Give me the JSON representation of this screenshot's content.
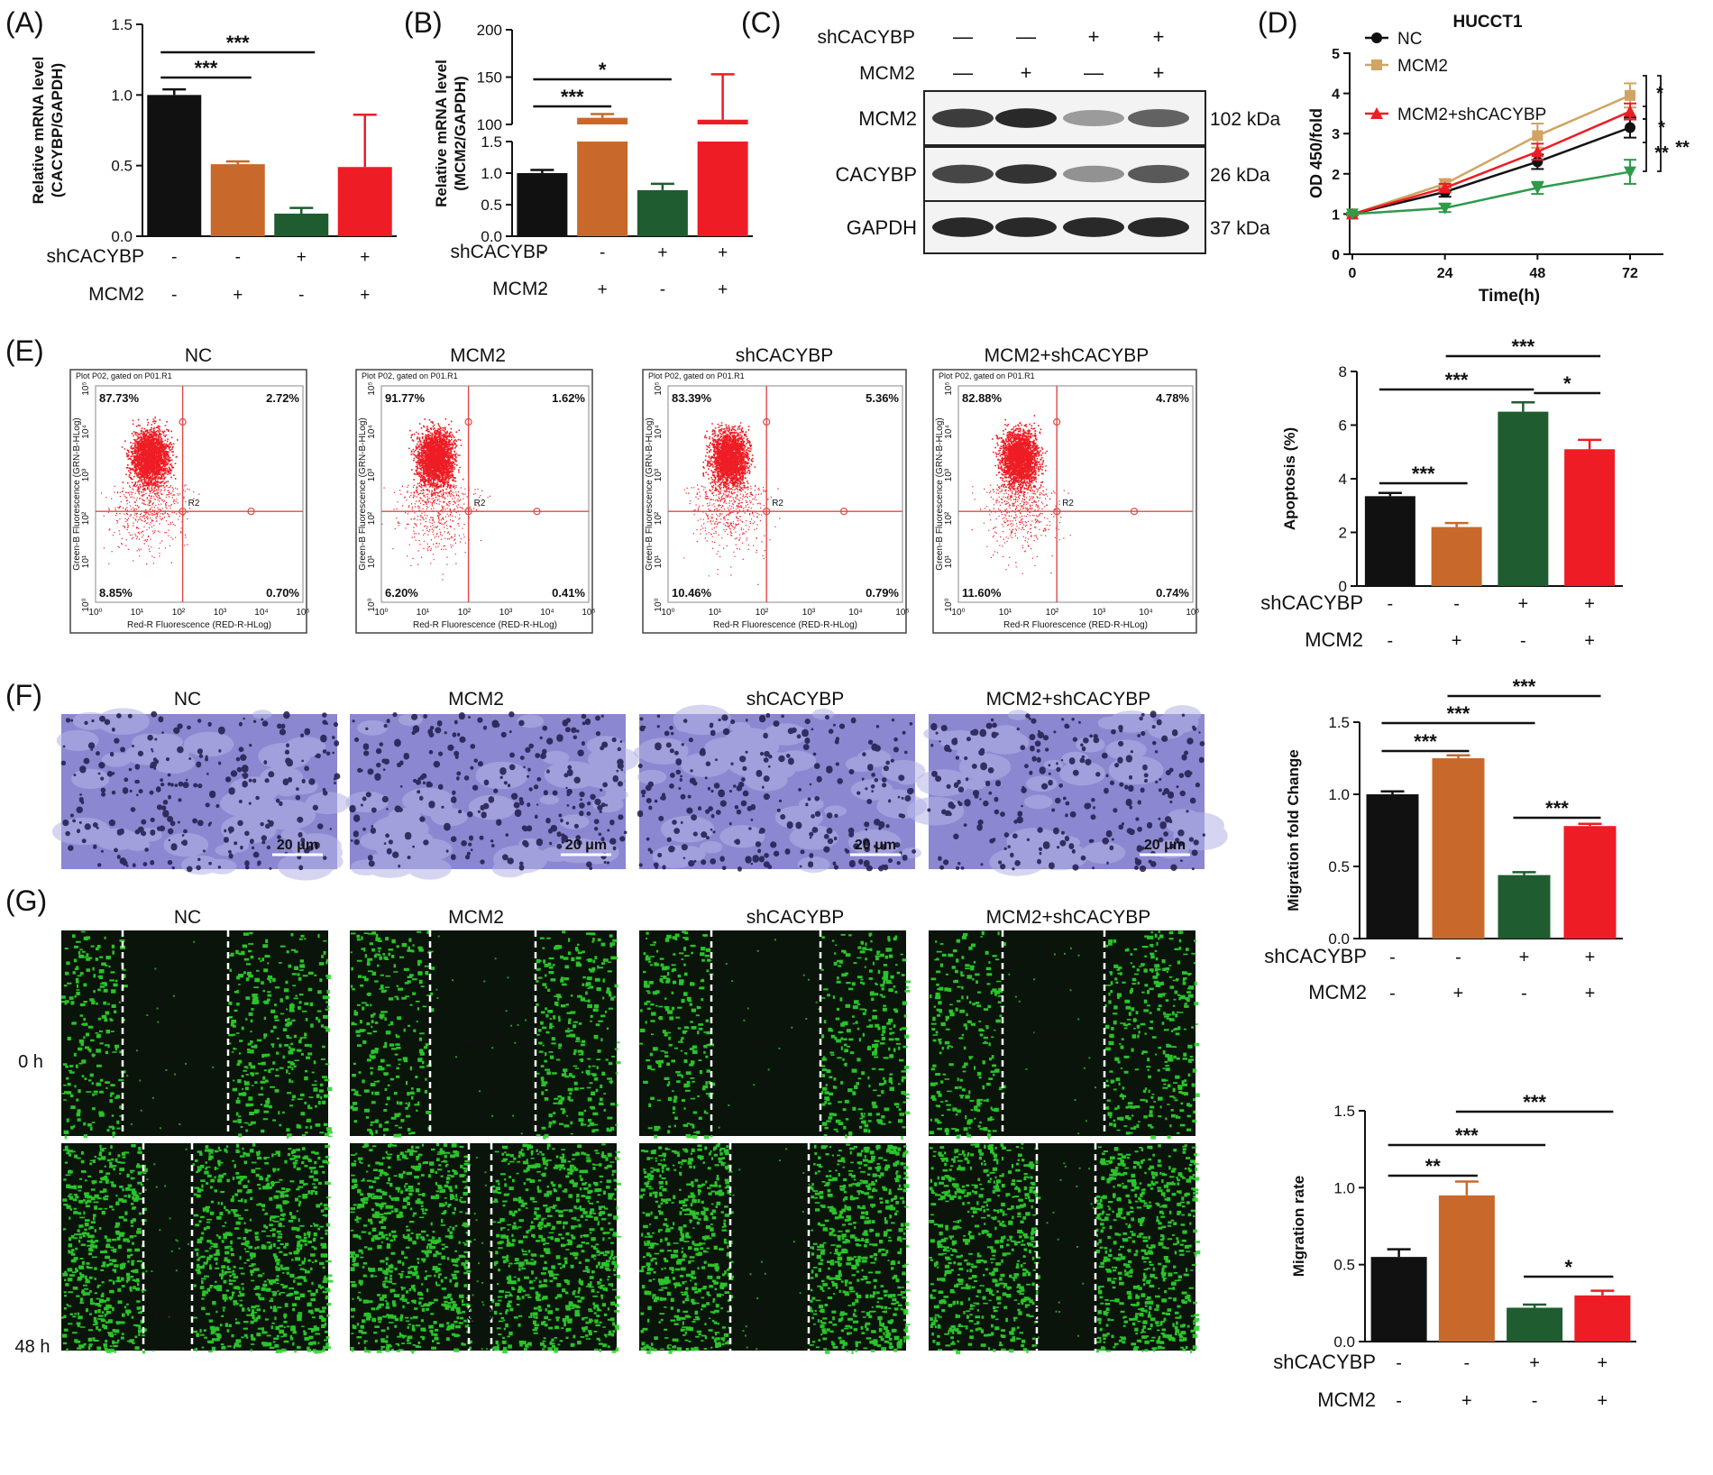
{
  "colors": {
    "black": "#111111",
    "orange": "#C8692B",
    "green": "#1F5C30",
    "red": "#EE1C24",
    "gold": "#D0A463",
    "scatter": "#EE1C24",
    "stain": "#6A68B8",
    "fluor_bg": "#0A140A",
    "fluor_cell": "#2ED62E"
  },
  "panel_labels": {
    "a": "(A)",
    "b": "(B)",
    "c": "(C)",
    "d": "(D)",
    "e": "(E)",
    "f": "(F)",
    "g": "(G)"
  },
  "groups": [
    "NC",
    "MCM2",
    "shCACYBP",
    "MCM2+shCACYBP"
  ],
  "row_labels": {
    "sh": "shCACYBP",
    "mcm": "MCM2"
  },
  "signs": {
    "sh": [
      "-",
      "-",
      "+",
      "+"
    ],
    "mcm": [
      "-",
      "+",
      "-",
      "+"
    ]
  },
  "panel_a": {
    "chart_data": {
      "type": "bar",
      "ylabel": "Relative mRNA level (CACYBP/GAPDH)",
      "ylabel_lines": [
        "Relative mRNA level",
        "(CACYBP/GAPDH)"
      ],
      "ylim": [
        0,
        1.5
      ],
      "ticks": [
        "0.0",
        "0.5",
        "1.0",
        "1.5"
      ],
      "values": [
        1.0,
        0.51,
        0.16,
        0.49
      ],
      "errors": [
        0.04,
        0.02,
        0.04,
        0.37
      ],
      "annotations": [
        "***",
        "***"
      ]
    }
  },
  "panel_b": {
    "chart_data": {
      "type": "bar",
      "ylabel": "Relative mRNA level (MCM2/GAPDH)",
      "ylabel_lines": [
        "Relative mRNA level",
        "(MCM2/GAPDH)"
      ],
      "axis_break": [
        1.6,
        100
      ],
      "ticks_low": [
        "0.0",
        "0.5",
        "1.0",
        "1.5"
      ],
      "ticks_high": [
        "100",
        "150",
        "200"
      ],
      "values": [
        1.0,
        107,
        0.73,
        105
      ],
      "errors": [
        0.05,
        4,
        0.1,
        48
      ],
      "annotations": [
        "***",
        "*"
      ]
    }
  },
  "panel_c": {
    "blot_rows": [
      {
        "label": "MCM2",
        "size": "102 kDa"
      },
      {
        "label": "CACYBP",
        "size": "26 kDa"
      },
      {
        "label": "GAPDH",
        "size": "37 kDa"
      }
    ],
    "band_intensity": [
      [
        0.85,
        0.95,
        0.35,
        0.65
      ],
      [
        0.8,
        0.9,
        0.4,
        0.7
      ],
      [
        0.95,
        0.95,
        0.95,
        0.95
      ]
    ]
  },
  "panel_d": {
    "chart_data": {
      "type": "line",
      "title": "HUCCT1",
      "xlabel": "Time(h)",
      "ylabel": "OD 450/fold",
      "x": [
        0,
        24,
        48,
        72
      ],
      "ylim": [
        0,
        5
      ],
      "yticks": [
        "0",
        "1",
        "2",
        "3",
        "4",
        "5"
      ],
      "xticks": [
        "0",
        "24",
        "48",
        "72"
      ],
      "series": [
        {
          "name": "NC",
          "values": [
            1.0,
            1.55,
            2.3,
            3.15
          ],
          "errors": [
            0.03,
            0.12,
            0.18,
            0.25
          ],
          "color": "#111111",
          "marker": "circle"
        },
        {
          "name": "MCM2",
          "values": [
            1.0,
            1.75,
            2.95,
            3.95
          ],
          "errors": [
            0.03,
            0.12,
            0.3,
            0.3
          ],
          "color": "#D0A463",
          "marker": "square"
        },
        {
          "name": "MCM2+shCACYBP",
          "values": [
            1.0,
            1.65,
            2.55,
            3.55
          ],
          "errors": [
            0.03,
            0.1,
            0.2,
            0.2
          ],
          "color": "#EE1C24",
          "marker": "triangle"
        },
        {
          "name": "",
          "values": [
            1.0,
            1.15,
            1.65,
            2.05
          ],
          "errors": [
            0.03,
            0.1,
            0.15,
            0.3
          ],
          "color": "#2E9A4A",
          "marker": "triangle-down"
        }
      ],
      "annotations": [
        "*",
        "*",
        "**",
        "**"
      ]
    }
  },
  "panel_e": {
    "plots": [
      {
        "title": "NC",
        "ul": "87.73%",
        "ur": "2.72%",
        "ll": "8.85%",
        "lr": "0.70%"
      },
      {
        "title": "MCM2",
        "ul": "91.77%",
        "ur": "1.62%",
        "ll": "6.20%",
        "lr": "0.41%"
      },
      {
        "title": "shCACYBP",
        "ul": "83.39%",
        "ur": "5.36%",
        "ll": "10.46%",
        "lr": "0.79%"
      },
      {
        "title": "MCM2+shCACYBP",
        "ul": "82.88%",
        "ur": "4.78%",
        "ll": "11.60%",
        "lr": "0.74%"
      }
    ],
    "plot_header": "Plot P02, gated on P01.R1",
    "gate": "R2",
    "x_axis": "Red-R Fluorescence (RED-R-HLog)",
    "y_axis": "Green-B Fluorescence (GRN-B-HLog)",
    "x_ticks": [
      "10⁰",
      "10¹",
      "10²",
      "10³",
      "10⁴",
      "10⁵"
    ],
    "y_ticks": [
      "10⁰",
      "10¹",
      "10²",
      "10³",
      "10⁴",
      "10⁵"
    ],
    "chart_data": {
      "type": "bar",
      "ylabel": "Apoptosis (%)",
      "ylim": [
        0,
        8
      ],
      "ticks": [
        "0",
        "2",
        "4",
        "6",
        "8"
      ],
      "values": [
        3.35,
        2.2,
        6.5,
        5.1
      ],
      "errors": [
        0.12,
        0.15,
        0.35,
        0.35
      ],
      "annotations": [
        "***",
        "***",
        "***",
        "*"
      ]
    }
  },
  "panel_f": {
    "scale_bar": "20 μm",
    "chart_data": {
      "type": "bar",
      "ylabel": "Migration fold Change",
      "ylim": [
        0,
        1.5
      ],
      "ticks": [
        "0.0",
        "0.5",
        "1.0",
        "1.5"
      ],
      "values": [
        1.0,
        1.25,
        0.44,
        0.78
      ],
      "errors": [
        0.02,
        0.02,
        0.02,
        0.015
      ],
      "annotations": [
        "***",
        "***",
        "***",
        "***"
      ]
    }
  },
  "panel_g": {
    "times": [
      "0 h",
      "48 h"
    ],
    "widths_0h": [
      "39.6",
      "40.0",
      "40.6",
      "39.6"
    ],
    "widths_48h": [
      "18.9",
      "6.0",
      "32.4",
      "27.6"
    ],
    "chart_data": {
      "type": "bar",
      "ylabel": "Migration rate",
      "ylim": [
        0,
        1.5
      ],
      "ticks": [
        "0.0",
        "0.5",
        "1.0",
        "1.5"
      ],
      "values": [
        0.55,
        0.95,
        0.22,
        0.3
      ],
      "errors": [
        0.05,
        0.09,
        0.02,
        0.03
      ],
      "annotations": [
        "**",
        "***",
        "***",
        "*"
      ]
    }
  }
}
